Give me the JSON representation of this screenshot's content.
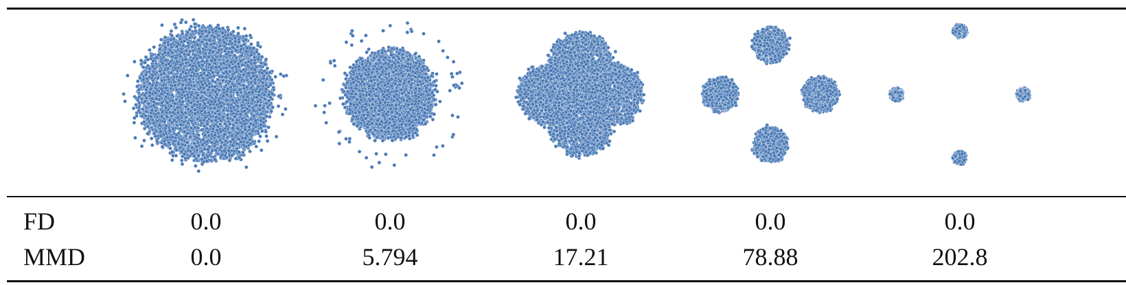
{
  "chart_data": {
    "type": "scatter",
    "point_color": "#4a7ab6",
    "point_edge_color": "#e8eef6",
    "panels": [
      {
        "clusters": [
          {
            "cx": 0,
            "cy": 0,
            "r": 1.0,
            "n": 5200
          }
        ],
        "noise_r": 1.15
      },
      {
        "clusters": [
          {
            "cx": 0,
            "cy": 0.08,
            "r": 0.62,
            "n": 1500
          },
          {
            "cx": 0.0,
            "cy": -0.08,
            "r": 0.62,
            "n": 1500
          },
          {
            "cx": 0.1,
            "cy": 0,
            "r": 0.6,
            "n": 1200
          },
          {
            "cx": -0.1,
            "cy": 0,
            "r": 0.6,
            "n": 1200
          }
        ],
        "noise_r": 1.05
      },
      {
        "clusters": [
          {
            "cx": 0,
            "cy": 0.48,
            "r": 0.46,
            "n": 1300
          },
          {
            "cx": 0.48,
            "cy": 0,
            "r": 0.46,
            "n": 1300
          },
          {
            "cx": 0,
            "cy": -0.48,
            "r": 0.46,
            "n": 1300
          },
          {
            "cx": -0.48,
            "cy": 0,
            "r": 0.46,
            "n": 1300
          }
        ],
        "noise_r": 0
      },
      {
        "clusters": [
          {
            "cx": 0,
            "cy": 0.76,
            "r": 0.26,
            "n": 800
          },
          {
            "cx": 0.76,
            "cy": 0,
            "r": 0.26,
            "n": 800
          },
          {
            "cx": 0,
            "cy": -0.76,
            "r": 0.26,
            "n": 800
          },
          {
            "cx": -0.76,
            "cy": 0,
            "r": 0.26,
            "n": 800
          }
        ],
        "noise_r": 0
      },
      {
        "clusters": [
          {
            "cx": 0,
            "cy": 0.96,
            "r": 0.1,
            "n": 260
          },
          {
            "cx": 0.96,
            "cy": 0,
            "r": 0.1,
            "n": 260
          },
          {
            "cx": 0,
            "cy": -0.96,
            "r": 0.1,
            "n": 260
          },
          {
            "cx": -0.96,
            "cy": 0,
            "r": 0.1,
            "n": 260
          }
        ],
        "noise_r": 0
      }
    ],
    "table": {
      "rows": [
        {
          "label": "FD",
          "values": [
            "0.0",
            "0.0",
            "0.0",
            "0.0",
            "0.0"
          ]
        },
        {
          "label": "MMD",
          "values": [
            "0.0",
            "5.794",
            "17.21",
            "78.88",
            "202.8"
          ]
        }
      ]
    }
  }
}
